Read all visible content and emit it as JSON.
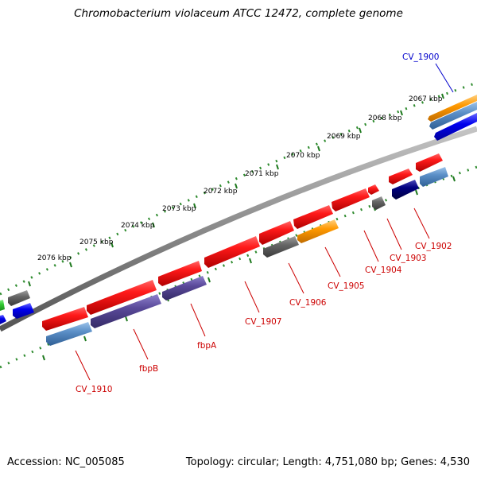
{
  "title": "Chromobacterium violaceum ATCC 12472, complete genome",
  "footer": {
    "accession": "Accession: NC_005085",
    "summary": "Topology: circular; Length: 4,751,080 bp; Genes: 4,530"
  },
  "scale_labels": [
    "2067 kbp",
    "2068 kbp",
    "2069 kbp",
    "2070 kbp",
    "2071 kbp",
    "2072 kbp",
    "2073 kbp",
    "2074 kbp",
    "2075 kbp",
    "2076 kbp"
  ],
  "gene_labels": [
    "CV_1900",
    "CV_1902",
    "CV_1903",
    "CV_1904",
    "CV_1905",
    "CV_1906",
    "CV_1907",
    "fbpA",
    "fbpB",
    "CV_1910"
  ],
  "colors": {
    "red_gene": "#ee1111",
    "dark_red_label": "#cc0000",
    "blue_label": "#0000cc",
    "backbone": "#8a8a8a",
    "scale_dots": "#2e8b2e",
    "steelblue": "#5b8fc7",
    "orange": "#ff9900",
    "slate": "#5a4a9a",
    "navy": "#000080",
    "grey": "#666666",
    "blue": "#0000ee",
    "green": "#33cc33"
  }
}
